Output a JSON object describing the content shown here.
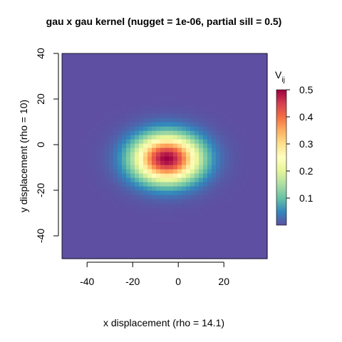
{
  "chart_data": {
    "type": "heatmap",
    "title": "gau x gau kernel (nugget = 1e-06, partial sill = 0.5)",
    "xlabel": "x displacement (rho = 14.1)",
    "ylabel": "y displacement (rho = 10)",
    "xlim": [
      -51,
      39
    ],
    "ylim": [
      -50,
      40
    ],
    "x_ticks": [
      -40,
      -20,
      0,
      20
    ],
    "y_ticks": [
      -40,
      -20,
      0,
      20,
      40
    ],
    "kernel": {
      "center_x": -5,
      "center_y": -6,
      "rho_x": 14.1,
      "rho_y": 10,
      "partial_sill": 0.5,
      "nugget": 1e-06
    },
    "legend": {
      "title_main": "V",
      "title_sub": "ij",
      "placement": "right",
      "ticks": [
        0.1,
        0.2,
        0.3,
        0.4,
        0.5
      ],
      "range": [
        0.0,
        0.5
      ]
    },
    "colorscale": [
      "#5E4FA2",
      "#3288BD",
      "#66C2A5",
      "#ABDDA4",
      "#E6F598",
      "#FFFFBF",
      "#FEE08B",
      "#FDAE61",
      "#F46D43",
      "#D53E4F",
      "#9E0142"
    ]
  }
}
